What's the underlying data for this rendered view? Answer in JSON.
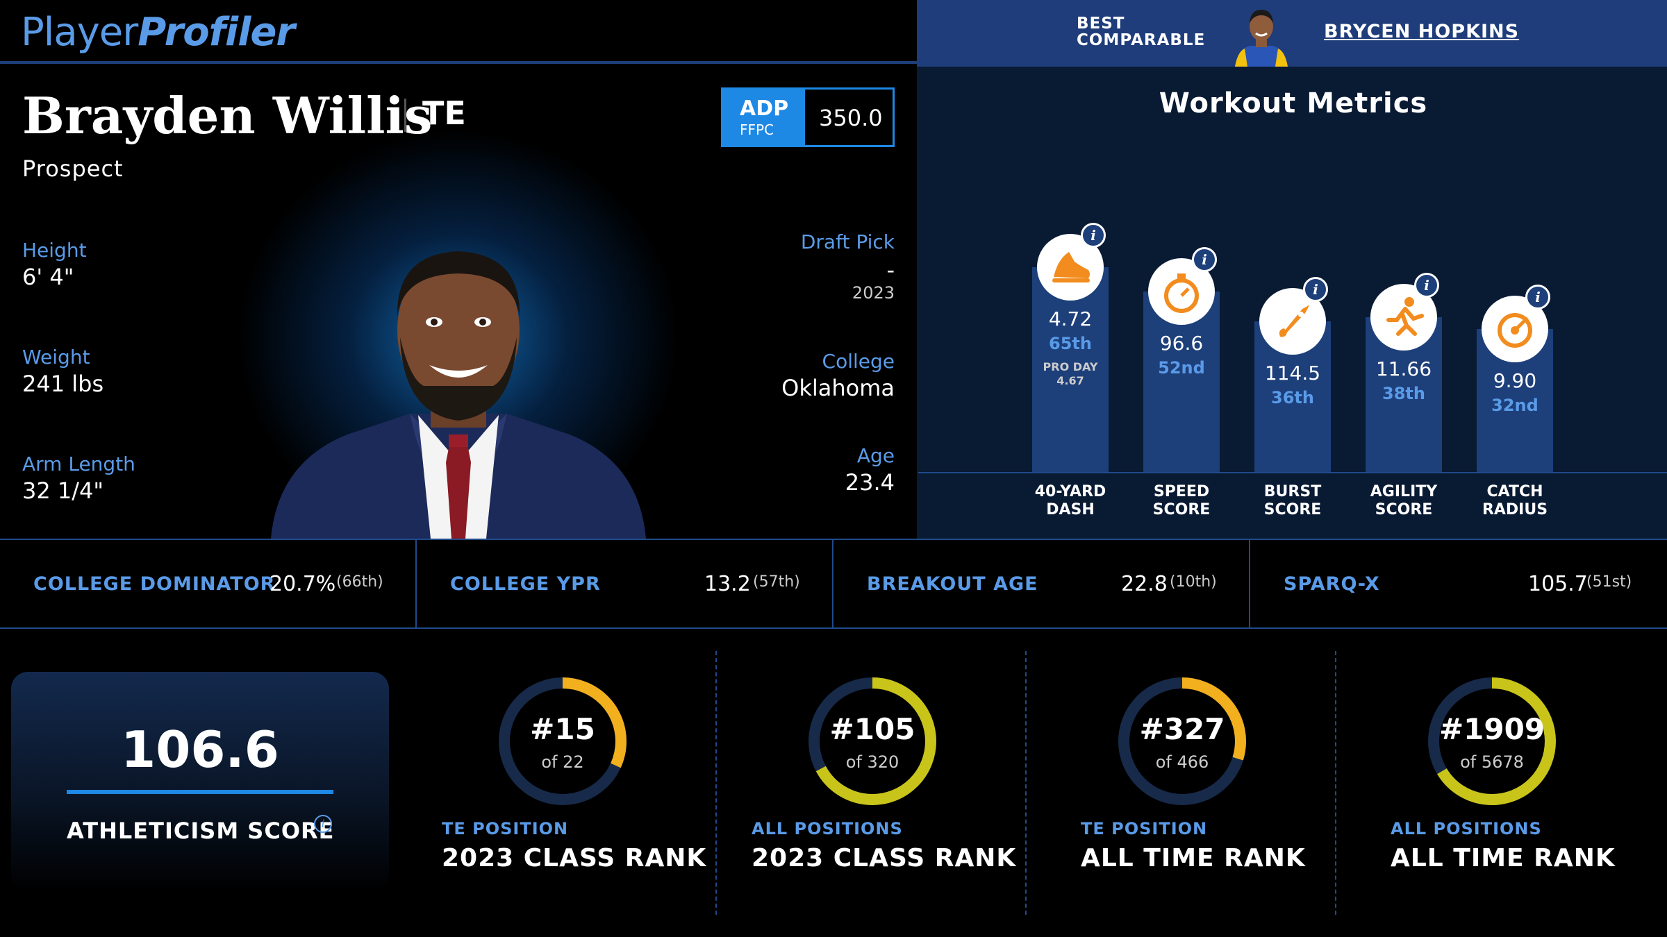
{
  "logo": {
    "part1": "Player",
    "part2": "Profiler"
  },
  "comparable": {
    "label_line1": "BEST",
    "label_line2": "COMPARABLE",
    "name": "BRYCEN HOPKINS"
  },
  "player": {
    "name": "Brayden Willis",
    "position": "TE",
    "status": "Prospect",
    "adp": {
      "label": "ADP",
      "source": "FFPC",
      "value": "350.0"
    },
    "height": {
      "label": "Height",
      "value": "6' 4\""
    },
    "weight": {
      "label": "Weight",
      "value": "241 lbs"
    },
    "arm_length": {
      "label": "Arm Length",
      "value": "32 1/4\""
    },
    "draft_pick": {
      "label": "Draft Pick",
      "value": "-",
      "year": "2023"
    },
    "college": {
      "label": "College",
      "value": "Oklahoma"
    },
    "age": {
      "label": "Age",
      "value": "23.4"
    }
  },
  "workout": {
    "title": "Workout Metrics",
    "metrics": [
      {
        "label_line1": "40-YARD",
        "label_line2": "DASH",
        "value": "4.72",
        "rank": "65th",
        "pro_day_label": "PRO DAY",
        "pro_day_value": "4.67",
        "icon": "shoe-icon",
        "percentile": 65
      },
      {
        "label_line1": "SPEED",
        "label_line2": "SCORE",
        "value": "96.6",
        "rank": "52nd",
        "icon": "stopwatch-icon",
        "percentile": 52
      },
      {
        "label_line1": "BURST",
        "label_line2": "SCORE",
        "value": "114.5",
        "rank": "36th",
        "icon": "rocket-icon",
        "percentile": 36
      },
      {
        "label_line1": "AGILITY",
        "label_line2": "SCORE",
        "value": "11.66",
        "rank": "38th",
        "icon": "runner-icon",
        "percentile": 38
      },
      {
        "label_line1": "CATCH",
        "label_line2": "RADIUS",
        "value": "9.90",
        "rank": "32nd",
        "icon": "target-icon",
        "percentile": 32
      }
    ],
    "info_glyph": "i"
  },
  "stats": [
    {
      "label": "COLLEGE DOMINATOR",
      "value": "20.7%",
      "pct": "(66th)"
    },
    {
      "label": "COLLEGE YPR",
      "value": "13.2",
      "pct": "(57th)"
    },
    {
      "label": "BREAKOUT AGE",
      "value": "22.8",
      "pct": "(10th)"
    },
    {
      "label": "SPARQ-X",
      "value": "105.7",
      "pct": "(51st)"
    }
  ],
  "athleticism": {
    "value": "106.6",
    "label": "ATHLETICISM SCORE",
    "info_glyph": "i"
  },
  "ranks": [
    {
      "num": "#15",
      "of": "of 22",
      "sub": "TE POSITION",
      "title": "2023 CLASS RANK",
      "rank": 15,
      "total": 22,
      "color": "#f2b01e"
    },
    {
      "num": "#105",
      "of": "of 320",
      "sub": "ALL POSITIONS",
      "title": "2023 CLASS RANK",
      "rank": 105,
      "total": 320,
      "color": "#c9c41a"
    },
    {
      "num": "#327",
      "of": "of 466",
      "sub": "TE POSITION",
      "title": "ALL TIME RANK",
      "rank": 327,
      "total": 466,
      "color": "#f2b01e"
    },
    {
      "num": "#1909",
      "of": "of 5678",
      "sub": "ALL POSITIONS",
      "title": "ALL TIME RANK",
      "rank": 1909,
      "total": 5678,
      "color": "#c9c41a"
    }
  ],
  "colors": {
    "accent": "#5a9be8",
    "bar": "#1d3f7a",
    "ring_track": "#172a4a",
    "ring_gold": "#f2b01e",
    "ring_olive": "#c9c41a"
  }
}
